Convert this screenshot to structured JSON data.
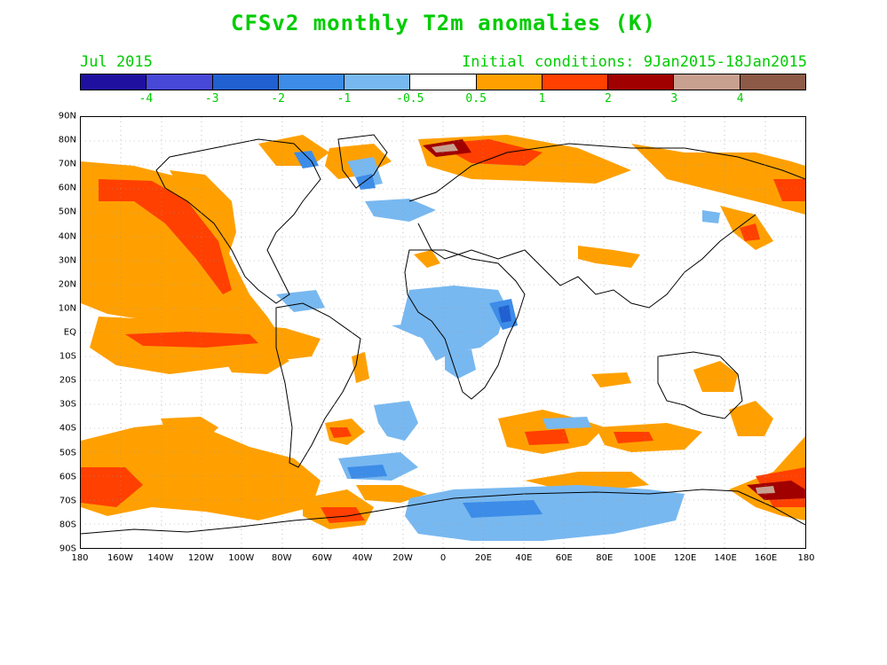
{
  "title": "CFSv2 monthly T2m anomalies (K)",
  "subtitle_left": "Jul 2015",
  "subtitle_right": "Initial conditions: 9Jan2015-18Jan2015",
  "colorbar": {
    "colors": [
      "#2010a0",
      "#4848d8",
      "#2060d0",
      "#3c8ce8",
      "#78b8f0",
      "#ffffff",
      "#ffa000",
      "#ff4000",
      "#a00000",
      "#c8a090",
      "#8c5a46"
    ],
    "labels": [
      "-4",
      "-3",
      "-2",
      "-1",
      "-0.5",
      "0.5",
      "1",
      "2",
      "3",
      "4"
    ]
  },
  "map": {
    "lat_labels": [
      "90N",
      "80N",
      "70N",
      "60N",
      "50N",
      "40N",
      "30N",
      "20N",
      "10N",
      "EQ",
      "10S",
      "20S",
      "30S",
      "40S",
      "50S",
      "60S",
      "70S",
      "80S",
      "90S"
    ],
    "lon_labels": [
      "180",
      "160W",
      "140W",
      "120W",
      "100W",
      "80W",
      "60W",
      "40W",
      "20W",
      "0",
      "20E",
      "40E",
      "60E",
      "80E",
      "100E",
      "120E",
      "140E",
      "160E",
      "180"
    ]
  }
}
